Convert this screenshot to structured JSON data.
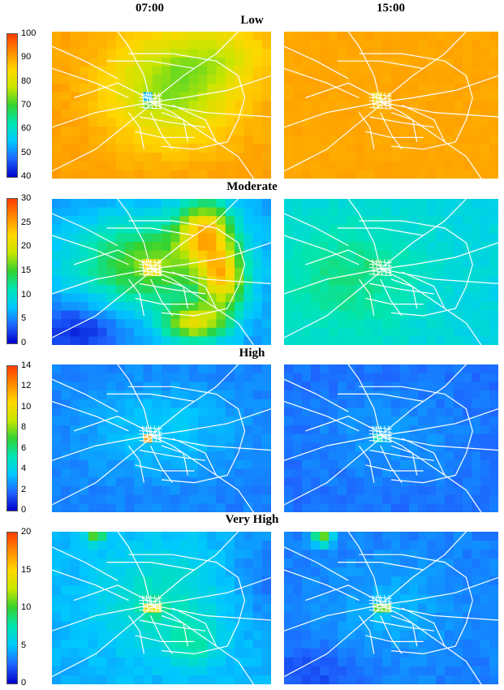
{
  "column_headers": [
    "07:00",
    "15:00"
  ],
  "chart_data": {
    "type": "heatmap",
    "panels": [
      {
        "title": "Low",
        "colorbar": {
          "min": 40,
          "max": 100,
          "ticks": [
            "100",
            "90",
            "80",
            "70",
            "60",
            "50",
            "40"
          ]
        },
        "maps": [
          {
            "time": "07:00",
            "pattern": "low-am"
          },
          {
            "time": "15:00",
            "pattern": "low-pm"
          }
        ]
      },
      {
        "title": "Moderate",
        "colorbar": {
          "min": 0,
          "max": 30,
          "ticks": [
            "30",
            "25",
            "20",
            "15",
            "10",
            "5",
            "0"
          ]
        },
        "maps": [
          {
            "time": "07:00",
            "pattern": "mod-am"
          },
          {
            "time": "15:00",
            "pattern": "mod-pm"
          }
        ]
      },
      {
        "title": "High",
        "colorbar": {
          "min": 0,
          "max": 14,
          "ticks": [
            "14",
            "12",
            "10",
            "8",
            "6",
            "4",
            "2",
            "0"
          ]
        },
        "maps": [
          {
            "time": "07:00",
            "pattern": "high-am"
          },
          {
            "time": "15:00",
            "pattern": "high-pm"
          }
        ]
      },
      {
        "title": "Very High",
        "colorbar": {
          "min": 0,
          "max": 20,
          "ticks": [
            "20",
            "15",
            "10",
            "5",
            "0"
          ]
        },
        "maps": [
          {
            "time": "07:00",
            "pattern": "vhigh-am"
          },
          {
            "time": "15:00",
            "pattern": "vhigh-pm"
          }
        ]
      }
    ],
    "colormap": [
      "#0000c8",
      "#1e64ff",
      "#00c8ff",
      "#00e6b4",
      "#32d232",
      "#c8e600",
      "#ffd700",
      "#ff8c00",
      "#ff3c00"
    ]
  }
}
